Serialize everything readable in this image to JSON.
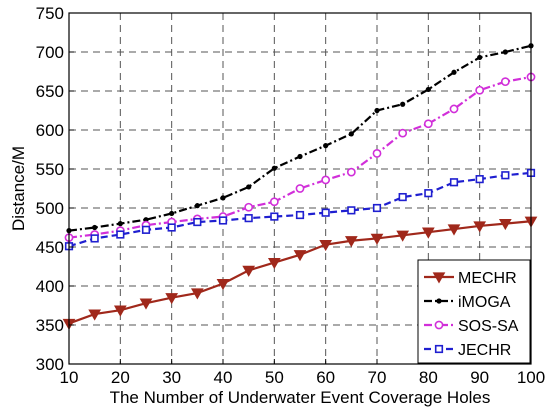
{
  "chart_data": {
    "type": "line",
    "title": "",
    "xlabel": "The Number of Underwater Event Coverage Holes",
    "ylabel": "Distance/M",
    "xlim": [
      10,
      100
    ],
    "ylim": [
      300,
      750
    ],
    "x": [
      10,
      15,
      20,
      25,
      30,
      35,
      40,
      45,
      50,
      55,
      60,
      65,
      70,
      75,
      80,
      85,
      90,
      95,
      100
    ],
    "xticks": [
      10,
      20,
      30,
      40,
      50,
      60,
      70,
      80,
      90,
      100
    ],
    "yticks": [
      300,
      350,
      400,
      450,
      500,
      550,
      600,
      650,
      700,
      750
    ],
    "grid": true,
    "legend_position": "bottom-right",
    "series": [
      {
        "name": "MECHR",
        "color": "#a0281b",
        "marker": "triangle-down",
        "line_style": "solid",
        "values": [
          352,
          364,
          369,
          378,
          385,
          391,
          403,
          420,
          430,
          440,
          453,
          458,
          461,
          465,
          469,
          473,
          477,
          480,
          483
        ]
      },
      {
        "name": "iMOGA",
        "color": "#000000",
        "marker": "dot",
        "line_style": "dash-dot",
        "values": [
          471,
          475,
          480,
          485,
          493,
          503,
          513,
          527,
          551,
          566,
          580,
          595,
          625,
          633,
          652,
          674,
          693,
          700,
          708
        ]
      },
      {
        "name": "SOS-SA",
        "color": "#d12fd9",
        "marker": "circle",
        "line_style": "dash-dot",
        "values": [
          462,
          466,
          471,
          478,
          482,
          486,
          489,
          501,
          508,
          525,
          536,
          546,
          570,
          596,
          608,
          627,
          651,
          662,
          668
        ]
      },
      {
        "name": "JECHR",
        "color": "#1f1fd0",
        "marker": "square",
        "line_style": "dashed",
        "values": [
          451,
          461,
          466,
          472,
          475,
          482,
          484,
          487,
          489,
          491,
          494,
          497,
          500,
          514,
          519,
          533,
          537,
          542,
          545
        ]
      }
    ]
  }
}
